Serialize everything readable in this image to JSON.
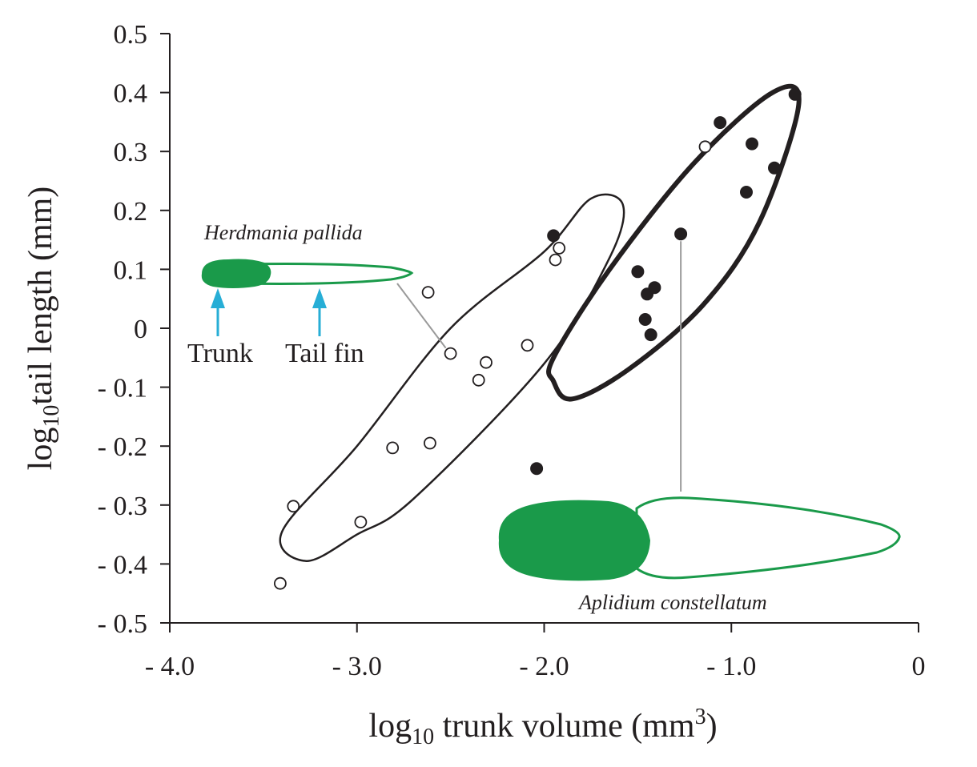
{
  "chart_data": {
    "type": "scatter",
    "title": "",
    "xlabel": {
      "prefix": "log",
      "sub": "10",
      "main": " trunk volume (mm",
      "sup": "3",
      "suffix": ")"
    },
    "ylabel": {
      "prefix": "log",
      "sub": "10",
      "main": "tail length (mm)"
    },
    "xlim": [
      -4.0,
      0
    ],
    "ylim": [
      -0.5,
      0.5
    ],
    "x_ticks": [
      {
        "value": -4.0,
        "label": "- 4.0"
      },
      {
        "value": -3.0,
        "label": "- 3.0"
      },
      {
        "value": -2.0,
        "label": "- 2.0"
      },
      {
        "value": -1.0,
        "label": "- 1.0"
      },
      {
        "value": 0,
        "label": "0"
      }
    ],
    "y_ticks": [
      {
        "value": 0.5,
        "label": "0.5"
      },
      {
        "value": 0.4,
        "label": "0.4"
      },
      {
        "value": 0.3,
        "label": "0.3"
      },
      {
        "value": 0.2,
        "label": "0.2"
      },
      {
        "value": 0.1,
        "label": "0.1"
      },
      {
        "value": 0,
        "label": "0"
      },
      {
        "value": -0.1,
        "label": "- 0.1"
      },
      {
        "value": -0.2,
        "label": "- 0.2"
      },
      {
        "value": -0.3,
        "label": "- 0.3"
      },
      {
        "value": -0.4,
        "label": "- 0.4"
      },
      {
        "value": -0.5,
        "label": "- 0.5"
      }
    ],
    "grid": false,
    "series": [
      {
        "marker": "open-circle",
        "color": "#231f20",
        "points": [
          {
            "x": -3.41,
            "y": -0.433
          },
          {
            "x": -3.34,
            "y": -0.302
          },
          {
            "x": -2.98,
            "y": -0.329
          },
          {
            "x": -2.81,
            "y": -0.203
          },
          {
            "x": -2.61,
            "y": -0.195
          },
          {
            "x": -2.62,
            "y": 0.061
          },
          {
            "x": -2.5,
            "y": -0.043
          },
          {
            "x": -2.35,
            "y": -0.088
          },
          {
            "x": -2.31,
            "y": -0.058
          },
          {
            "x": -2.09,
            "y": -0.029
          },
          {
            "x": -1.94,
            "y": 0.116
          },
          {
            "x": -1.92,
            "y": 0.136
          },
          {
            "x": -1.14,
            "y": 0.308
          }
        ]
      },
      {
        "marker": "filled-circle",
        "color": "#231f20",
        "points": [
          {
            "x": -2.04,
            "y": -0.238
          },
          {
            "x": -1.95,
            "y": 0.157
          },
          {
            "x": -1.5,
            "y": 0.096
          },
          {
            "x": -1.45,
            "y": 0.058
          },
          {
            "x": -1.46,
            "y": 0.015
          },
          {
            "x": -1.43,
            "y": -0.011
          },
          {
            "x": -1.41,
            "y": 0.069
          },
          {
            "x": -1.27,
            "y": 0.16
          },
          {
            "x": -1.06,
            "y": 0.349
          },
          {
            "x": -0.92,
            "y": 0.231
          },
          {
            "x": -0.89,
            "y": 0.313
          },
          {
            "x": -0.77,
            "y": 0.272
          },
          {
            "x": -0.66,
            "y": 0.397
          }
        ]
      }
    ],
    "ellipses": [
      {
        "group": "open",
        "stroke_width": "thin",
        "color": "#231f20",
        "path": [
          [
            -3.27,
            -0.395
          ],
          [
            -3.4,
            -0.345
          ],
          [
            -3.0,
            -0.2
          ],
          [
            -2.5,
            0.0
          ],
          [
            -2.0,
            0.13
          ],
          [
            -1.75,
            0.22
          ],
          [
            -1.58,
            0.21
          ],
          [
            -1.65,
            0.12
          ],
          [
            -2.0,
            -0.06
          ],
          [
            -2.7,
            -0.29
          ],
          [
            -3.0,
            -0.35
          ]
        ]
      },
      {
        "group": "filled",
        "stroke_width": "thick",
        "color": "#231f20",
        "path": [
          [
            -1.95,
            -0.09
          ],
          [
            -1.85,
            -0.12
          ],
          [
            -1.55,
            -0.07
          ],
          [
            -1.15,
            0.04
          ],
          [
            -0.85,
            0.18
          ],
          [
            -0.64,
            0.38
          ],
          [
            -0.78,
            0.4
          ],
          [
            -1.2,
            0.28
          ],
          [
            -1.65,
            0.1
          ],
          [
            -1.95,
            -0.05
          ]
        ]
      }
    ],
    "annotations": {
      "herdmania": {
        "label": "Herdmania pallida",
        "fill_color": "#1a9a4a",
        "outline_color": "#1a9a4a",
        "pointer_to": {
          "x": -2.5,
          "y": -0.043
        },
        "arrow_color": "#27aed6",
        "arrow_labels": [
          "Trunk",
          "Tail fin"
        ]
      },
      "aplidium": {
        "label": "Aplidium constellatum",
        "fill_color": "#1a9a4a",
        "outline_color": "#1a9a4a",
        "pointer_to": {
          "x": -1.27,
          "y": 0.16
        }
      },
      "leader_line_color": "#9a9a9a"
    }
  }
}
